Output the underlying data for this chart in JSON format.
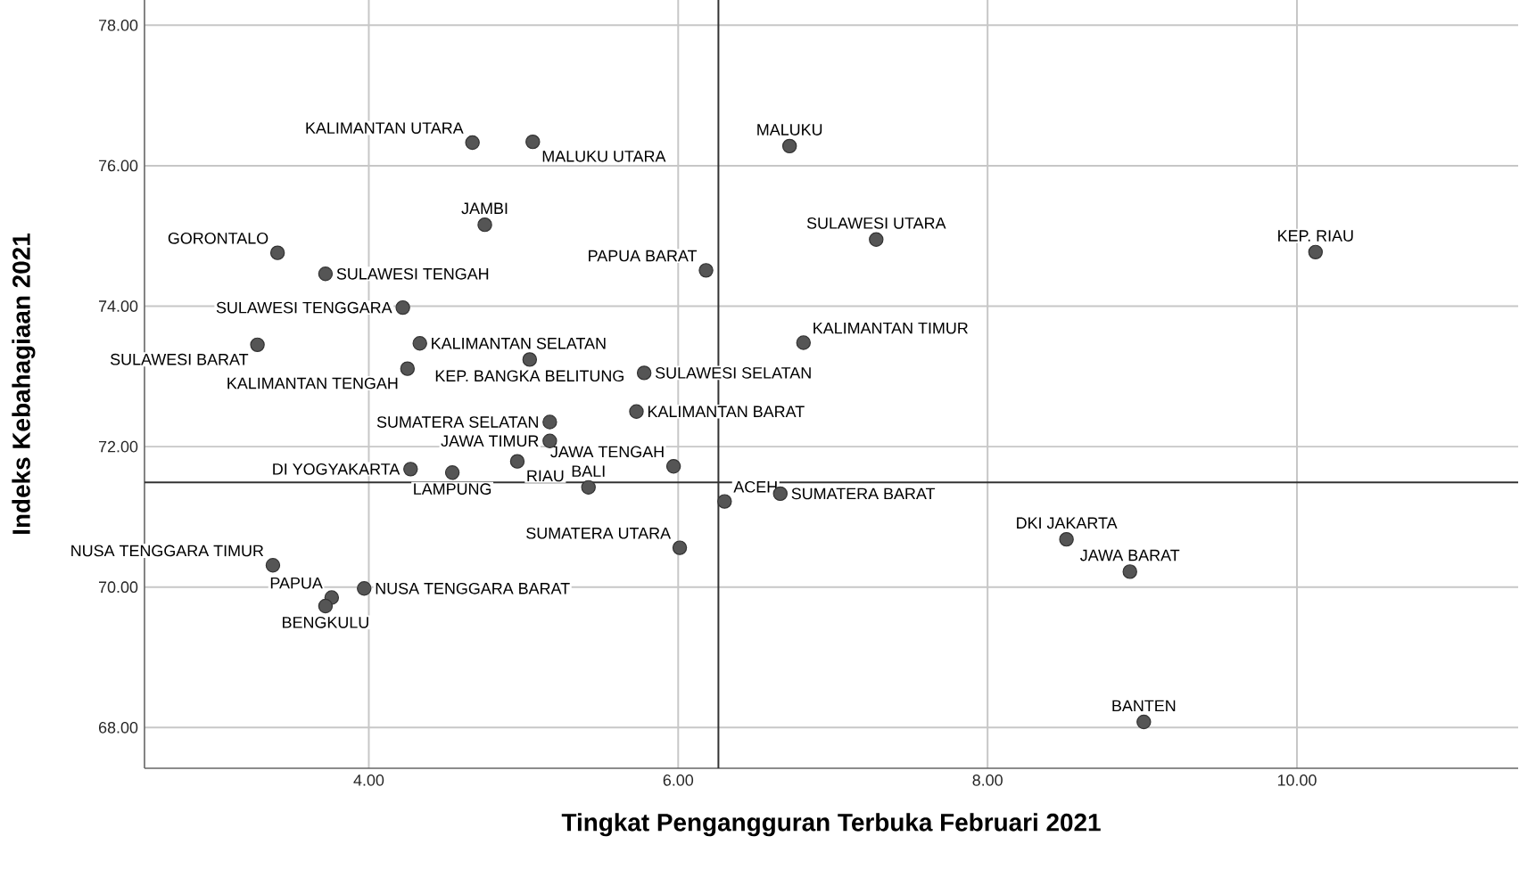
{
  "chart_data": {
    "type": "scatter",
    "xlabel": "Tingkat Pengangguran Terbuka Februari 2021",
    "ylabel": "Indeks Kebahagiaan 2021",
    "x": [
      4.67,
      5.06,
      4.75,
      3.41,
      3.72,
      4.22,
      3.28,
      4.33,
      4.25,
      5.04,
      5.78,
      6.18,
      5.17,
      5.73,
      6.72,
      7.28,
      10.12,
      6.81,
      5.17,
      4.27,
      4.54,
      4.96,
      5.42,
      5.97,
      6.3,
      6.01,
      3.38,
      3.76,
      3.97,
      3.72,
      6.66,
      8.51,
      8.92,
      9.01
    ],
    "values": [
      76.33,
      76.34,
      75.16,
      74.76,
      74.46,
      73.98,
      73.45,
      73.47,
      73.11,
      73.24,
      73.05,
      74.51,
      72.35,
      72.5,
      76.28,
      74.95,
      74.77,
      73.48,
      72.08,
      71.68,
      71.63,
      71.79,
      71.42,
      71.72,
      71.22,
      70.56,
      70.31,
      69.85,
      69.98,
      69.73,
      71.33,
      70.68,
      70.22,
      68.08
    ],
    "color": "#555555",
    "marker": "circle",
    "xlim": [
      2.55,
      11.43
    ],
    "ylim": [
      67.42,
      78.36
    ],
    "xticks": [
      {
        "value": 4,
        "label": "4.00"
      },
      {
        "value": 6,
        "label": "6.00"
      },
      {
        "value": 8,
        "label": "8.00"
      },
      {
        "value": 10,
        "label": "10.00"
      }
    ],
    "yticks": [
      {
        "value": 68,
        "label": "68.00"
      },
      {
        "value": 70,
        "label": "70.00"
      },
      {
        "value": 72,
        "label": "72.00"
      },
      {
        "value": 74,
        "label": "74.00"
      },
      {
        "value": 76,
        "label": "76.00"
      },
      {
        "value": 78,
        "label": "78.00"
      }
    ],
    "grid": true,
    "ref_lines": [
      {
        "axis": "x",
        "value": 6.26,
        "color": "#333333"
      },
      {
        "axis": "y",
        "value": 71.49,
        "color": "#333333"
      }
    ],
    "annotations": [
      {
        "text": "KALIMANTAN UTARA",
        "x": 4.67,
        "y": 76.33
      },
      {
        "text": "MALUKU UTARA",
        "x": 5.06,
        "y": 76.34
      },
      {
        "text": "JAMBI",
        "x": 4.75,
        "y": 75.16
      },
      {
        "text": "GORONTALO",
        "x": 3.41,
        "y": 74.76
      },
      {
        "text": "SULAWESI TENGAH",
        "x": 3.72,
        "y": 74.46
      },
      {
        "text": "SULAWESI TENGGARA",
        "x": 4.22,
        "y": 73.98
      },
      {
        "text": "SULAWESI BARAT",
        "x": 3.28,
        "y": 73.45
      },
      {
        "text": "KALIMANTAN SELATAN",
        "x": 4.33,
        "y": 73.47
      },
      {
        "text": "KALIMANTAN TENGAH",
        "x": 4.25,
        "y": 73.11
      },
      {
        "text": "KEP. BANGKA BELITUNG",
        "x": 5.04,
        "y": 73.24
      },
      {
        "text": "SULAWESI SELATAN",
        "x": 5.78,
        "y": 73.05
      },
      {
        "text": "PAPUA BARAT",
        "x": 6.18,
        "y": 74.51
      },
      {
        "text": "SUMATERA SELATAN",
        "x": 5.17,
        "y": 72.35
      },
      {
        "text": "KALIMANTAN BARAT",
        "x": 5.73,
        "y": 72.5
      },
      {
        "text": "MALUKU",
        "x": 6.72,
        "y": 76.28
      },
      {
        "text": "SULAWESI UTARA",
        "x": 7.28,
        "y": 74.95
      },
      {
        "text": "KEP. RIAU",
        "x": 10.12,
        "y": 74.77
      },
      {
        "text": "KALIMANTAN TIMUR",
        "x": 6.81,
        "y": 73.48
      },
      {
        "text": "JAWA TIMUR",
        "x": 5.17,
        "y": 72.08
      },
      {
        "text": "DI YOGYAKARTA",
        "x": 4.27,
        "y": 71.68
      },
      {
        "text": "LAMPUNG",
        "x": 4.54,
        "y": 71.63
      },
      {
        "text": "RIAU",
        "x": 4.96,
        "y": 71.79
      },
      {
        "text": "BALI",
        "x": 5.42,
        "y": 71.42
      },
      {
        "text": "JAWA TENGAH",
        "x": 5.97,
        "y": 71.72
      },
      {
        "text": "ACEH",
        "x": 6.3,
        "y": 71.22
      },
      {
        "text": "SUMATERA UTARA",
        "x": 6.01,
        "y": 70.56
      },
      {
        "text": "NUSA TENGGARA TIMUR",
        "x": 3.38,
        "y": 70.31
      },
      {
        "text": "PAPUA",
        "x": 3.76,
        "y": 69.85
      },
      {
        "text": "NUSA TENGGARA BARAT",
        "x": 3.97,
        "y": 69.98
      },
      {
        "text": "BENGKULU",
        "x": 3.72,
        "y": 69.73
      },
      {
        "text": "SUMATERA BARAT",
        "x": 6.66,
        "y": 71.33
      },
      {
        "text": "DKI JAKARTA",
        "x": 8.51,
        "y": 70.68
      },
      {
        "text": "JAWA BARAT",
        "x": 8.92,
        "y": 70.22
      },
      {
        "text": "BANTEN",
        "x": 9.01,
        "y": 68.08
      }
    ]
  }
}
